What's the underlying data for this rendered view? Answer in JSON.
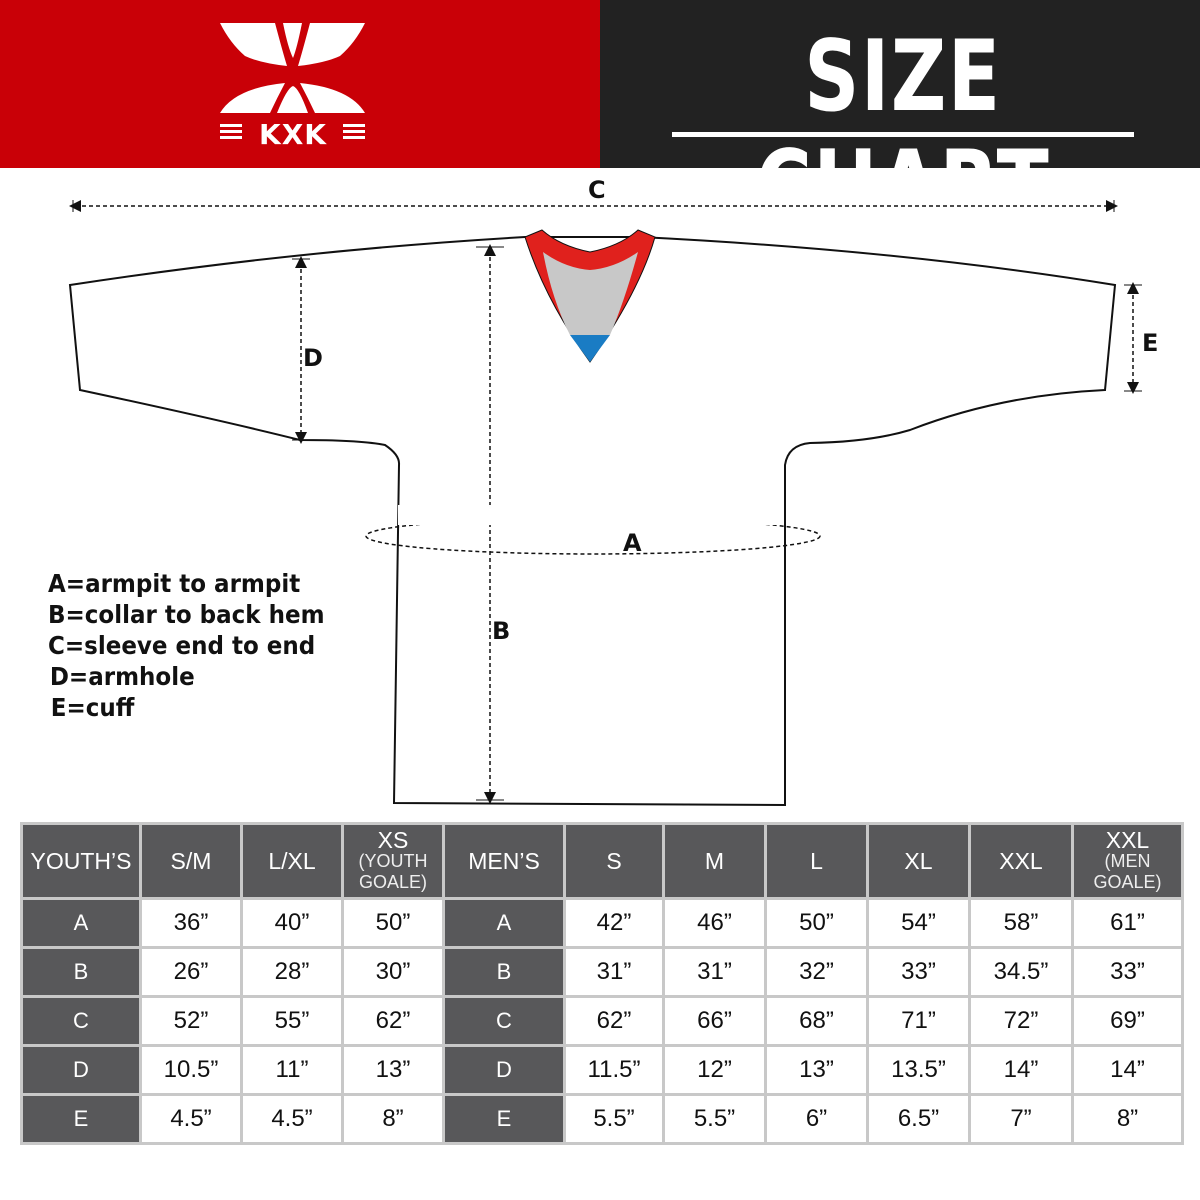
{
  "header": {
    "brand": "KXK",
    "title": "SIZE CHART",
    "brand_color": "#c90007",
    "title_bg": "#222222"
  },
  "diagram": {
    "labels": {
      "a": "A",
      "b": "B",
      "c": "C",
      "d": "D",
      "e": "E"
    },
    "collar_colors": {
      "trim": "#e0211d",
      "inner": "#c8c8c8",
      "tip": "#1a7cc4"
    }
  },
  "legend": [
    "A=armpit to armpit",
    "B=collar to back hem",
    "C=sleeve end to end",
    "D=armhole",
    "E=cuff"
  ],
  "table": {
    "header": [
      {
        "main": "YOUTH’S",
        "sub": ""
      },
      {
        "main": "S/M",
        "sub": ""
      },
      {
        "main": "L/XL",
        "sub": ""
      },
      {
        "main": "XS",
        "sub": "(YOUTH GOALE)"
      },
      {
        "main": "MEN’S",
        "sub": ""
      },
      {
        "main": "S",
        "sub": ""
      },
      {
        "main": "M",
        "sub": ""
      },
      {
        "main": "L",
        "sub": ""
      },
      {
        "main": "XL",
        "sub": ""
      },
      {
        "main": "XXL",
        "sub": ""
      },
      {
        "main": "XXL",
        "sub": "(MEN GOALE)"
      }
    ],
    "rows": [
      [
        "A",
        "36”",
        "40”",
        "50”",
        "A",
        "42”",
        "46”",
        "50”",
        "54”",
        "58”",
        "61”"
      ],
      [
        "B",
        "26”",
        "28”",
        "30”",
        "B",
        "31”",
        "31”",
        "32”",
        "33”",
        "34.5”",
        "33”"
      ],
      [
        "C",
        "52”",
        "55”",
        "62”",
        "C",
        "62”",
        "66”",
        "68”",
        "71”",
        "72”",
        "69”"
      ],
      [
        "D",
        "10.5”",
        "11”",
        "13”",
        "D",
        "11.5”",
        "12”",
        "13”",
        "13.5”",
        "14”",
        "14”"
      ],
      [
        "E",
        "4.5”",
        "4.5”",
        "8”",
        "E",
        "5.5”",
        "5.5”",
        "6”",
        "6.5”",
        "7”",
        "8”"
      ]
    ]
  }
}
